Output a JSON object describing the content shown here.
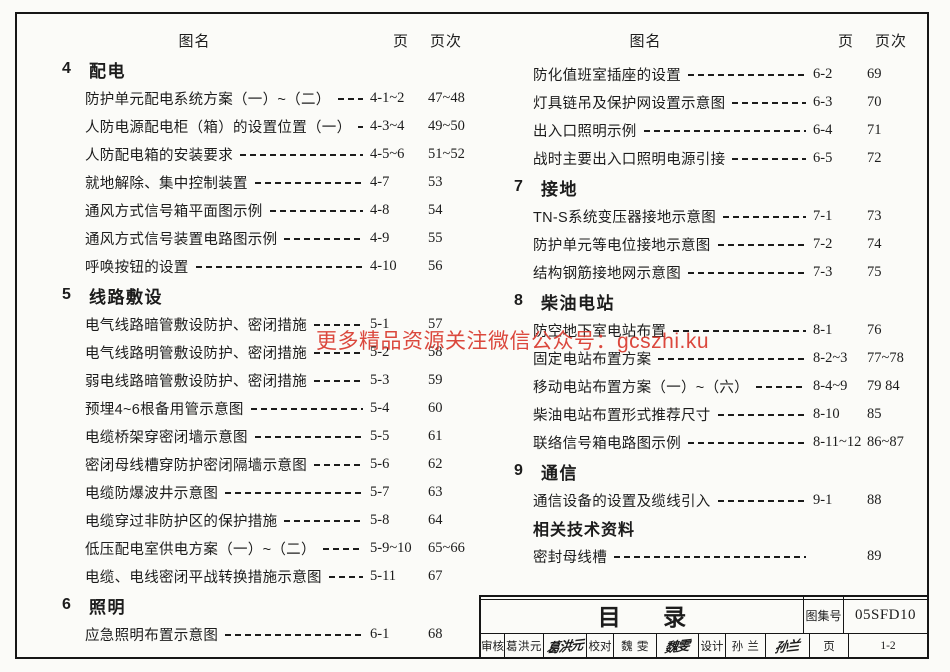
{
  "watermark": {
    "text": "更多精品资源关注微信公众号：gcszhi.ku",
    "color": "#d9392e"
  },
  "ink_color": "#1c1c1c",
  "columns": [
    {
      "header": {
        "name": "图名",
        "page": "页",
        "page_no": "页次"
      },
      "rows": [
        {
          "type": "section",
          "num": "4",
          "title": "配电"
        },
        {
          "type": "entry",
          "title": "防护单元配电系统方案（一）~（二）",
          "page": "4-1~2",
          "page_no": "47~48"
        },
        {
          "type": "entry",
          "title": "人防电源配电柜（箱）的设置位置（一）~（二）",
          "page": "4-3~4",
          "page_no": "49~50"
        },
        {
          "type": "entry",
          "title": "人防配电箱的安装要求",
          "page": "4-5~6",
          "page_no": "51~52"
        },
        {
          "type": "entry",
          "title": "就地解除、集中控制装置",
          "page": "4-7",
          "page_no": "53"
        },
        {
          "type": "entry",
          "title": "通风方式信号箱平面图示例",
          "page": "4-8",
          "page_no": "54"
        },
        {
          "type": "entry",
          "title": "通风方式信号装置电路图示例",
          "page": "4-9",
          "page_no": "55"
        },
        {
          "type": "entry",
          "title": "呼唤按钮的设置",
          "page": "4-10",
          "page_no": "56"
        },
        {
          "type": "section",
          "num": "5",
          "title": "线路敷设"
        },
        {
          "type": "entry",
          "title": "电气线路暗管敷设防护、密闭措施",
          "page": "5-1",
          "page_no": "57"
        },
        {
          "type": "entry",
          "title": "电气线路明管敷设防护、密闭措施",
          "page": "5-2",
          "page_no": "58"
        },
        {
          "type": "entry",
          "title": "弱电线路暗管敷设防护、密闭措施",
          "page": "5-3",
          "page_no": "59"
        },
        {
          "type": "entry",
          "title": "预埋4~6根备用管示意图",
          "page": "5-4",
          "page_no": "60"
        },
        {
          "type": "entry",
          "title": "电缆桥架穿密闭墙示意图",
          "page": "5-5",
          "page_no": "61"
        },
        {
          "type": "entry",
          "title": "密闭母线槽穿防护密闭隔墙示意图",
          "page": "5-6",
          "page_no": "62"
        },
        {
          "type": "entry",
          "title": "电缆防爆波井示意图",
          "page": "5-7",
          "page_no": "63"
        },
        {
          "type": "entry",
          "title": "电缆穿过非防护区的保护措施",
          "page": "5-8",
          "page_no": "64"
        },
        {
          "type": "entry",
          "title": "低压配电室供电方案（一）~（二）",
          "page": "5-9~10",
          "page_no": "65~66"
        },
        {
          "type": "entry",
          "title": "电缆、电线密闭平战转换措施示意图",
          "page": "5-11",
          "page_no": "67"
        },
        {
          "type": "section",
          "num": "6",
          "title": "照明"
        },
        {
          "type": "entry",
          "title": "应急照明布置示意图",
          "page": "6-1",
          "page_no": "68"
        }
      ]
    },
    {
      "header": {
        "name": "图名",
        "page": "页",
        "page_no": "页次"
      },
      "rows": [
        {
          "type": "entry",
          "title": "防化值班室插座的设置",
          "page": "6-2",
          "page_no": "69"
        },
        {
          "type": "entry",
          "title": "灯具链吊及保护网设置示意图",
          "page": "6-3",
          "page_no": "70"
        },
        {
          "type": "entry",
          "title": "出入口照明示例",
          "page": "6-4",
          "page_no": "71"
        },
        {
          "type": "entry",
          "title": "战时主要出入口照明电源引接",
          "page": "6-5",
          "page_no": "72"
        },
        {
          "type": "section",
          "num": "7",
          "title": "接地"
        },
        {
          "type": "entry",
          "title": "TN-S系统变压器接地示意图",
          "page": "7-1",
          "page_no": "73"
        },
        {
          "type": "entry",
          "title": "防护单元等电位接地示意图",
          "page": "7-2",
          "page_no": "74"
        },
        {
          "type": "entry",
          "title": "结构钢筋接地网示意图",
          "page": "7-3",
          "page_no": "75"
        },
        {
          "type": "section",
          "num": "8",
          "title": "柴油电站"
        },
        {
          "type": "entry",
          "title": "防空地下室电站布置",
          "page": "8-1",
          "page_no": "76"
        },
        {
          "type": "entry",
          "title": "固定电站布置方案",
          "page": "8-2~3",
          "page_no": "77~78"
        },
        {
          "type": "entry",
          "title": "移动电站布置方案（一）~（六）",
          "page": "8-4~9",
          "page_no": "79 84"
        },
        {
          "type": "entry",
          "title": "柴油电站布置形式推荐尺寸",
          "page": "8-10",
          "page_no": "85"
        },
        {
          "type": "entry",
          "title": "联络信号箱电路图示例",
          "page": "8-11~12",
          "page_no": "86~87"
        },
        {
          "type": "section",
          "num": "9",
          "title": "通信"
        },
        {
          "type": "entry",
          "title": "通信设备的设置及缆线引入",
          "page": "9-1",
          "page_no": "88"
        },
        {
          "type": "subheading",
          "title": "相关技术资料"
        },
        {
          "type": "entry",
          "title": "密封母线槽",
          "page": "",
          "page_no": "89"
        }
      ]
    }
  ],
  "title_block": {
    "doc_title": "目  录",
    "atlas_label": "图集号",
    "atlas_no": "05SFD10",
    "review_label": "审核",
    "review_name": "葛洪元",
    "review_sig": "葛洪元",
    "proof_label": "校对",
    "proof_name": "魏 雯",
    "proof_sig": "魏雯",
    "design_label": "设计",
    "design_name": "孙 兰",
    "design_sig": "孙兰",
    "page_label": "页",
    "page_no": "1-2"
  }
}
